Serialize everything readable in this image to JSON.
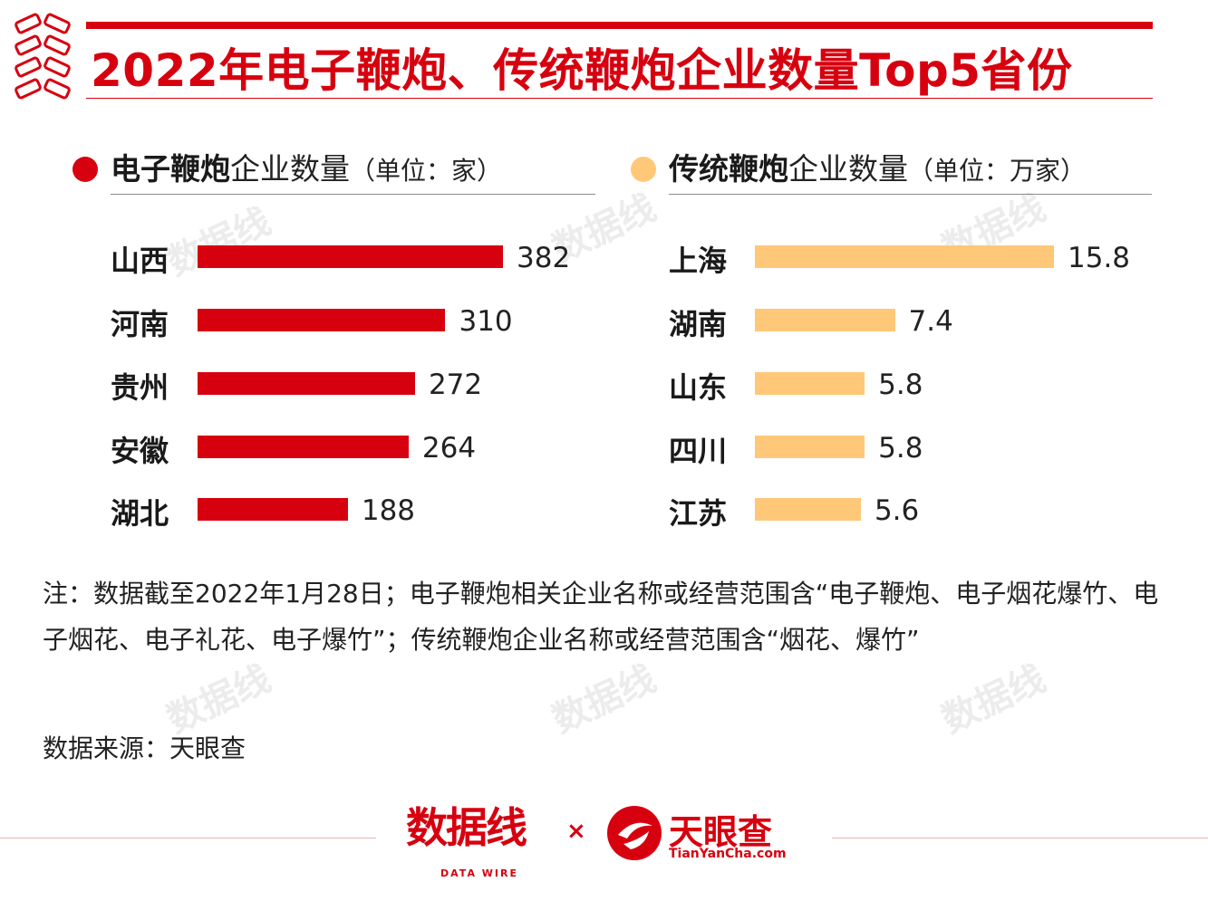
{
  "title": "2022年电子鞭炮、传统鞭炮企业数量Top5省份",
  "colors": {
    "accent": "#d7000f",
    "series_electronic": "#d7000f",
    "series_traditional": "#ffc878"
  },
  "watermark": {
    "cn": "数据线",
    "en": "DATA WIRE"
  },
  "chart_data": [
    {
      "type": "bar",
      "orientation": "horizontal",
      "legend": {
        "strong": "电子鞭炮",
        "rest": "企业数量",
        "unit": "（单位：家）"
      },
      "series": [
        {
          "name": "电子鞭炮企业数量",
          "values": [
            382,
            310,
            272,
            264,
            188
          ]
        }
      ],
      "categories": [
        "山西",
        "河南",
        "贵州",
        "安徽",
        "湖北"
      ],
      "values": [
        382,
        310,
        272,
        264,
        188
      ],
      "value_labels": [
        "382",
        "310",
        "272",
        "264",
        "188"
      ],
      "xlim": [
        0,
        382
      ],
      "color": "#d7000f"
    },
    {
      "type": "bar",
      "orientation": "horizontal",
      "legend": {
        "strong": "传统鞭炮",
        "rest": "企业数量",
        "unit": "（单位：万家）"
      },
      "series": [
        {
          "name": "传统鞭炮企业数量",
          "values": [
            15.8,
            7.4,
            5.8,
            5.8,
            5.6
          ]
        }
      ],
      "categories": [
        "上海",
        "湖南",
        "山东",
        "四川",
        "江苏"
      ],
      "values": [
        15.8,
        7.4,
        5.8,
        5.8,
        5.6
      ],
      "value_labels": [
        "15.8",
        "7.4",
        "5.8",
        "5.8",
        "5.6"
      ],
      "xlim": [
        0,
        15.8
      ],
      "color": "#ffc878"
    }
  ],
  "note": "注：数据截至2022年1月28日；电子鞭炮相关企业名称或经营范围含“电子鞭炮、电子烟花爆竹、电子烟花、电子礼花、电子爆竹”；传统鞭炮企业名称或经营范围含“烟花、爆竹”",
  "source": "数据来源：天眼查",
  "footer": {
    "brand1": "数据线",
    "brand1_sub": "DATA WIRE",
    "times": "×",
    "brand2": "天眼查",
    "brand2_sub": "TianYanCha.com"
  }
}
